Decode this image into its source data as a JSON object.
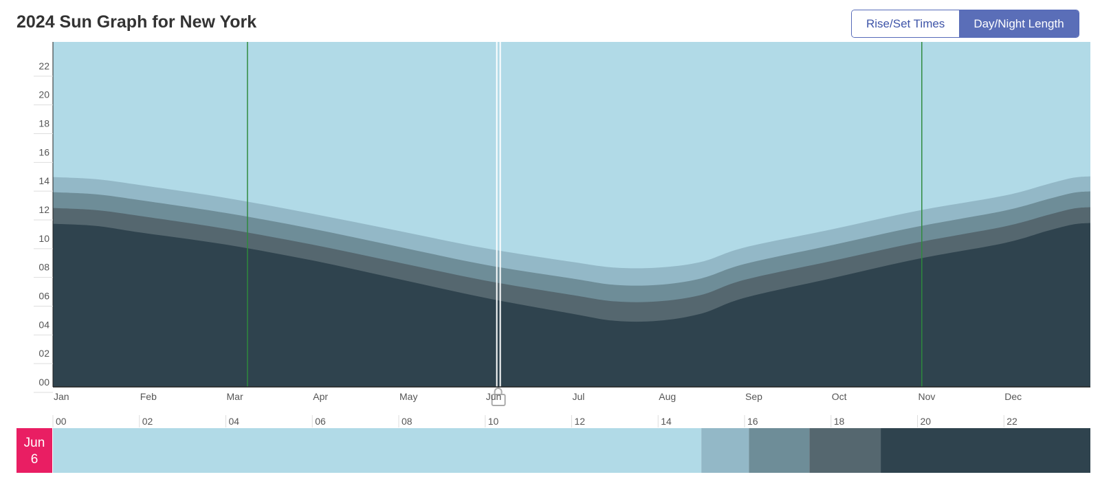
{
  "header": {
    "title": "2024 Sun Graph for New York",
    "views": [
      {
        "label": "Rise/Set Times",
        "active": false
      },
      {
        "label": "Day/Night Length",
        "active": true
      }
    ]
  },
  "colors": {
    "day": "#b1dae7",
    "civil_twilight": "#93b8c7",
    "nautical_twilight": "#6e8d98",
    "astronomical_twilight": "#55676f",
    "night": "#2f434e",
    "dst_marker": "#2f8a3e",
    "selected_date": "#e91e63"
  },
  "chart_data": {
    "type": "area",
    "title": "2024 Sun Graph for New York",
    "x_axis": {
      "ticks": [
        "Jan",
        "Feb",
        "Mar",
        "Apr",
        "May",
        "Jun",
        "Jul",
        "Aug",
        "Sep",
        "Oct",
        "Nov",
        "Dec"
      ]
    },
    "y_axis": {
      "ticks": [
        "00",
        "02",
        "04",
        "06",
        "08",
        "10",
        "12",
        "14",
        "16",
        "18",
        "20",
        "22"
      ],
      "range": [
        0,
        24
      ],
      "unit": "hours"
    },
    "series": [
      {
        "layer": "night",
        "values": [
          11.35,
          11.2,
          10.75,
          9.9,
          8.8,
          7.5,
          6.2,
          5.1,
          4.6,
          4.6,
          5.1,
          6.2,
          7.55,
          8.9,
          10.0,
          10.85,
          11.3,
          11.4
        ]
      },
      {
        "layer": "astronomical_twilight",
        "values": [
          12.45,
          12.3,
          11.9,
          11.0,
          9.9,
          8.65,
          7.4,
          6.4,
          5.95,
          5.95,
          6.4,
          7.45,
          8.75,
          10.05,
          11.15,
          11.95,
          12.4,
          12.5
        ]
      },
      {
        "layer": "nautical_twilight",
        "values": [
          13.55,
          13.4,
          13.0,
          12.1,
          11.0,
          9.75,
          8.5,
          7.55,
          7.1,
          7.1,
          7.55,
          8.55,
          9.85,
          11.15,
          12.25,
          13.05,
          13.5,
          13.6
        ]
      },
      {
        "layer": "civil_twilight",
        "values": [
          14.6,
          14.45,
          14.05,
          13.15,
          12.05,
          10.85,
          9.65,
          8.7,
          8.3,
          8.3,
          8.7,
          9.7,
          10.95,
          12.25,
          13.3,
          14.1,
          14.55,
          14.65
        ]
      }
    ],
    "series_x_months": [
      0,
      0.5,
      1,
      2,
      3,
      4,
      5,
      6,
      6.5,
      7,
      7.5,
      8,
      9,
      10,
      11,
      11.5,
      11.8,
      12
    ],
    "dst_markers_months": [
      2.25,
      10.05
    ],
    "selected_date": {
      "month": "Jun",
      "day": "6",
      "position_months": 5.15
    },
    "day_strip": {
      "ticks": [
        "00",
        "02",
        "04",
        "06",
        "08",
        "10",
        "12",
        "14",
        "16",
        "18",
        "20",
        "22"
      ],
      "segments": [
        {
          "layer": "day",
          "from": 0,
          "to": 15.0
        },
        {
          "layer": "civil_twilight",
          "from": 15.0,
          "to": 16.1
        },
        {
          "layer": "nautical_twilight",
          "from": 16.1,
          "to": 17.5
        },
        {
          "layer": "astronomical_twilight",
          "from": 17.5,
          "to": 19.15
        },
        {
          "layer": "night",
          "from": 19.15,
          "to": 24
        }
      ]
    }
  }
}
